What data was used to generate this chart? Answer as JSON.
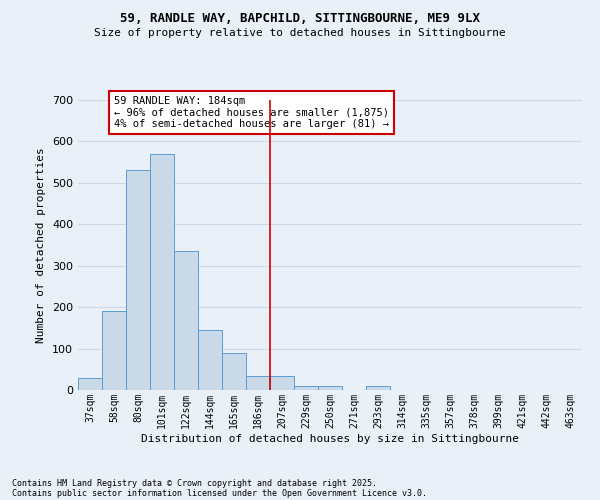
{
  "title1": "59, RANDLE WAY, BAPCHILD, SITTINGBOURNE, ME9 9LX",
  "title2": "Size of property relative to detached houses in Sittingbourne",
  "xlabel": "Distribution of detached houses by size in Sittingbourne",
  "ylabel": "Number of detached properties",
  "categories": [
    "37sqm",
    "58sqm",
    "80sqm",
    "101sqm",
    "122sqm",
    "144sqm",
    "165sqm",
    "186sqm",
    "207sqm",
    "229sqm",
    "250sqm",
    "271sqm",
    "293sqm",
    "314sqm",
    "335sqm",
    "357sqm",
    "378sqm",
    "399sqm",
    "421sqm",
    "442sqm",
    "463sqm"
  ],
  "values": [
    30,
    190,
    530,
    570,
    335,
    145,
    90,
    35,
    35,
    10,
    10,
    0,
    10,
    0,
    0,
    0,
    0,
    0,
    0,
    0,
    0
  ],
  "bar_color": "#c9d9e8",
  "bar_edge_color": "#5b9bd5",
  "grid_color": "#d0d8e8",
  "background_color": "#eaf0f8",
  "redline_x": 7.5,
  "annotation_text": "59 RANDLE WAY: 184sqm\n← 96% of detached houses are smaller (1,875)\n4% of semi-detached houses are larger (81) →",
  "annotation_box_color": "#ffffff",
  "annotation_box_edge": "#cc0000",
  "annotation_text_color": "#000000",
  "redline_color": "#cc0000",
  "ylim": [
    0,
    700
  ],
  "yticks": [
    0,
    100,
    200,
    300,
    400,
    500,
    600,
    700
  ],
  "footer1": "Contains HM Land Registry data © Crown copyright and database right 2025.",
  "footer2": "Contains public sector information licensed under the Open Government Licence v3.0."
}
